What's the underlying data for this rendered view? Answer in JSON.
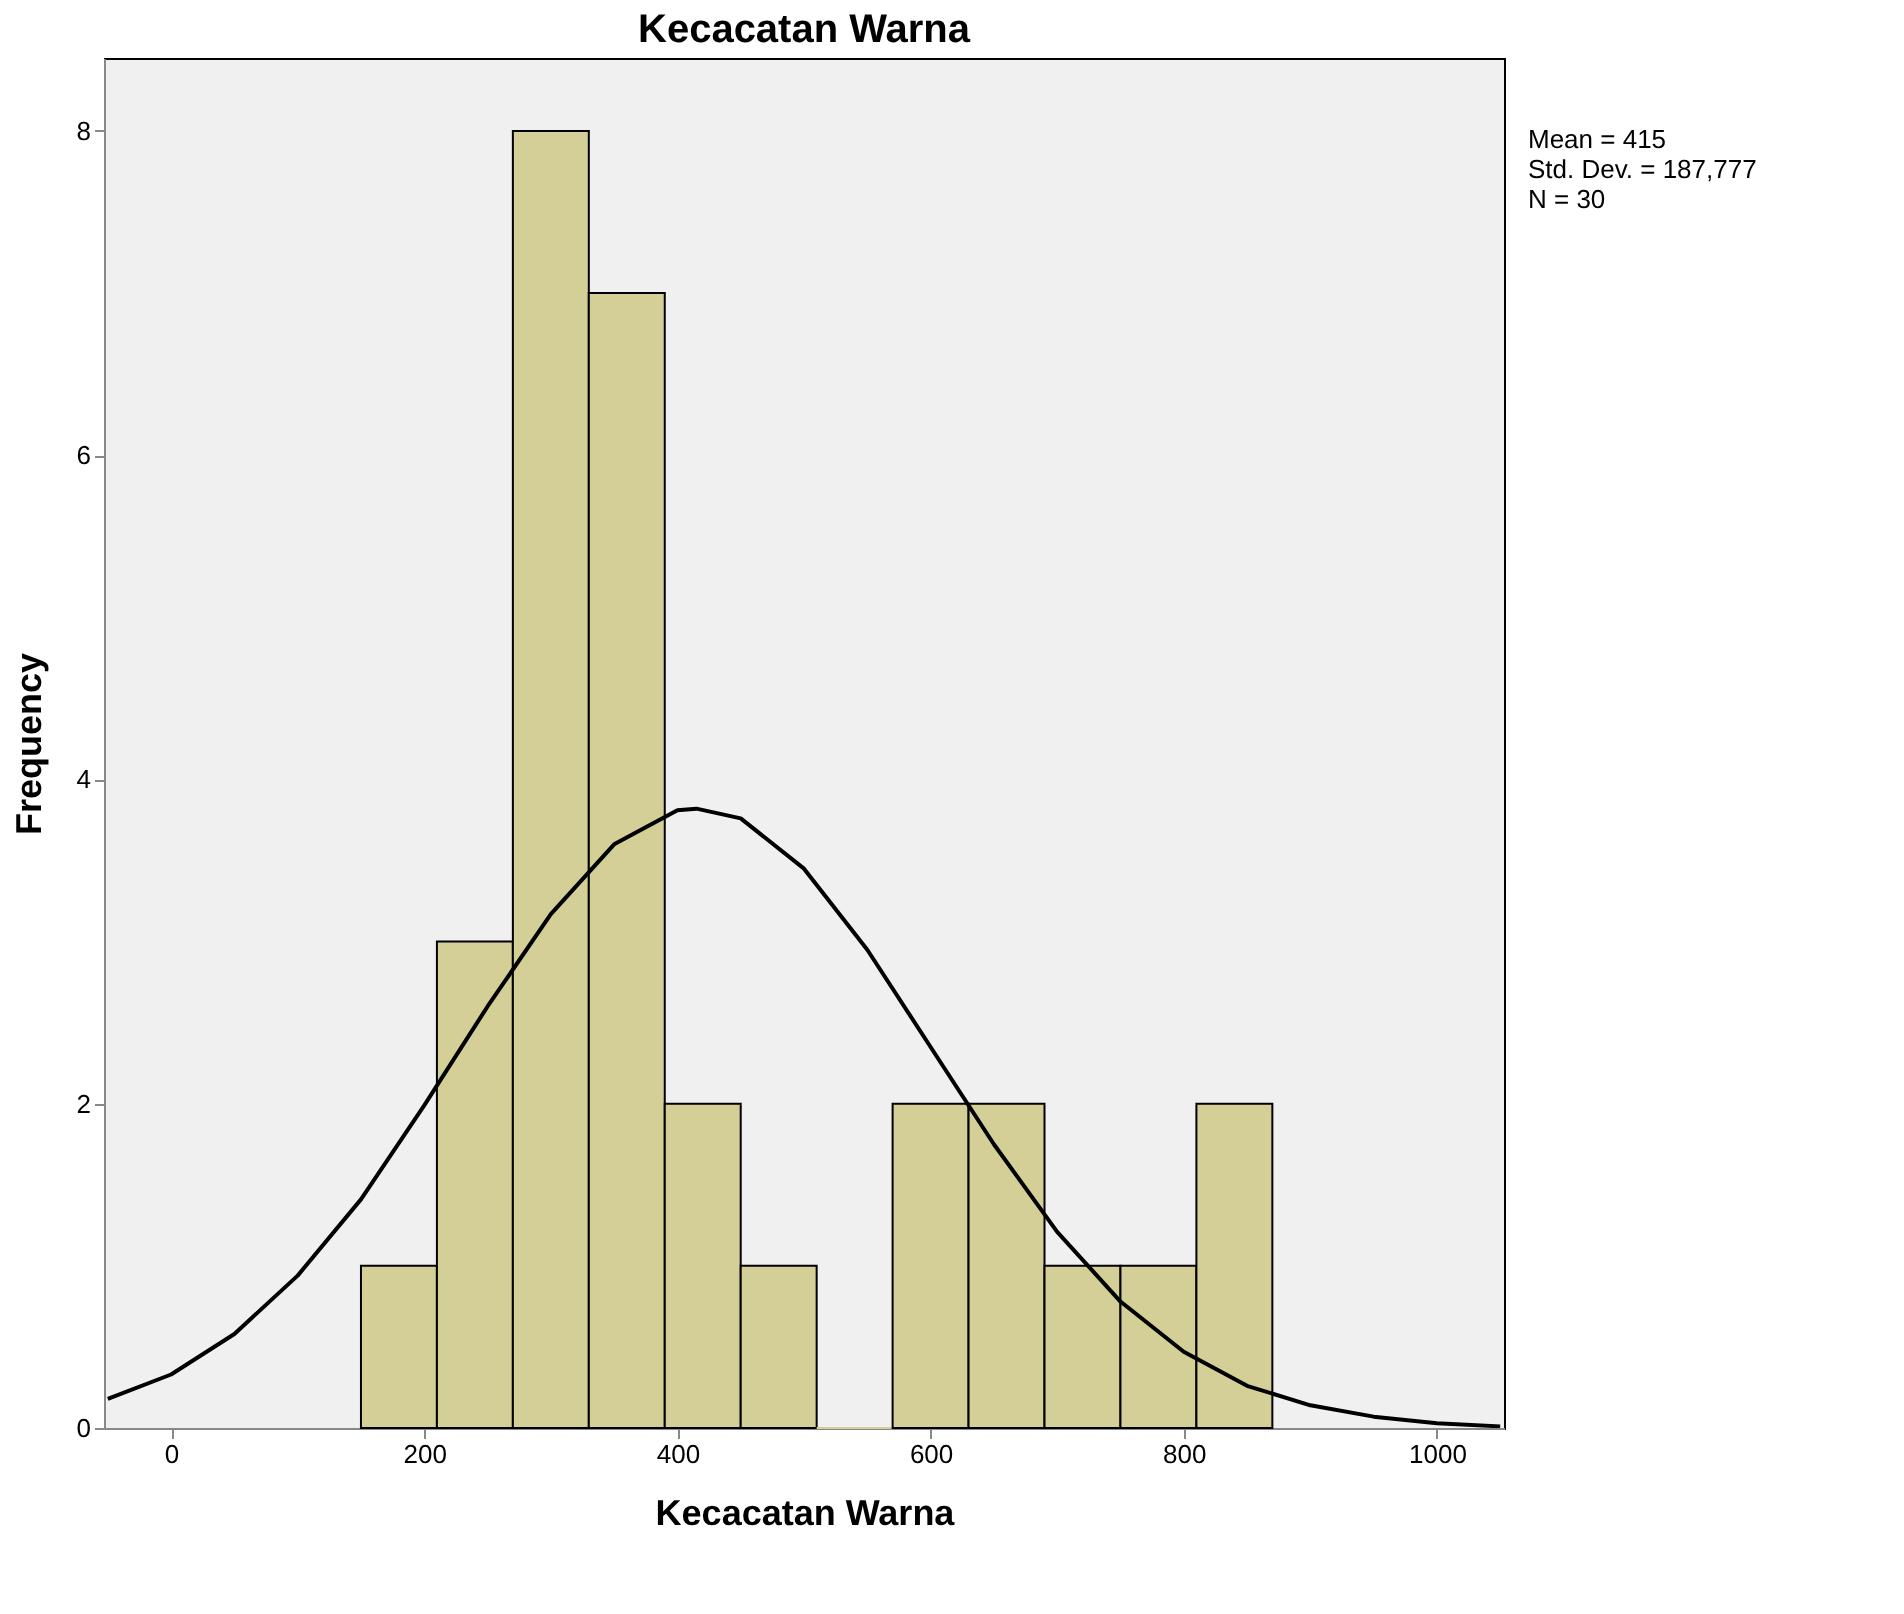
{
  "chart_data": {
    "type": "histogram",
    "title": "Kecacatan Warna",
    "xlabel": "Kecacatan Warna",
    "ylabel": "Frequency",
    "bins": [
      150,
      210,
      270,
      330,
      390,
      450,
      510,
      570,
      630,
      690,
      750,
      810,
      870
    ],
    "values": [
      1,
      3,
      8,
      7,
      2,
      1,
      0,
      2,
      2,
      1,
      1,
      2
    ],
    "color": "#d3cf97",
    "series": [
      {
        "type": "line",
        "color": "#000000",
        "x": [
          -50,
          0,
          50,
          100,
          150,
          200,
          250,
          300,
          350,
          400,
          415,
          450,
          500,
          550,
          600,
          650,
          700,
          750,
          800,
          850,
          900,
          950,
          1000,
          1050
        ],
        "values": [
          0.18,
          0.33,
          0.58,
          0.94,
          1.41,
          1.99,
          2.6,
          3.17,
          3.6,
          3.81,
          3.82,
          3.76,
          3.45,
          2.95,
          2.35,
          1.75,
          1.21,
          0.78,
          0.47,
          0.26,
          0.14,
          0.07,
          0.03,
          0.01
        ]
      }
    ],
    "xlim": [
      -53,
      1053
    ],
    "ylim": [
      0,
      8.45
    ],
    "xticks": [
      0,
      200,
      400,
      600,
      800,
      1000
    ],
    "yticks": [
      0,
      2,
      4,
      6,
      8
    ],
    "grid": false,
    "annotations": [
      "Mean = 415",
      "Std. Dev. = 187,777",
      "N = 30"
    ]
  }
}
